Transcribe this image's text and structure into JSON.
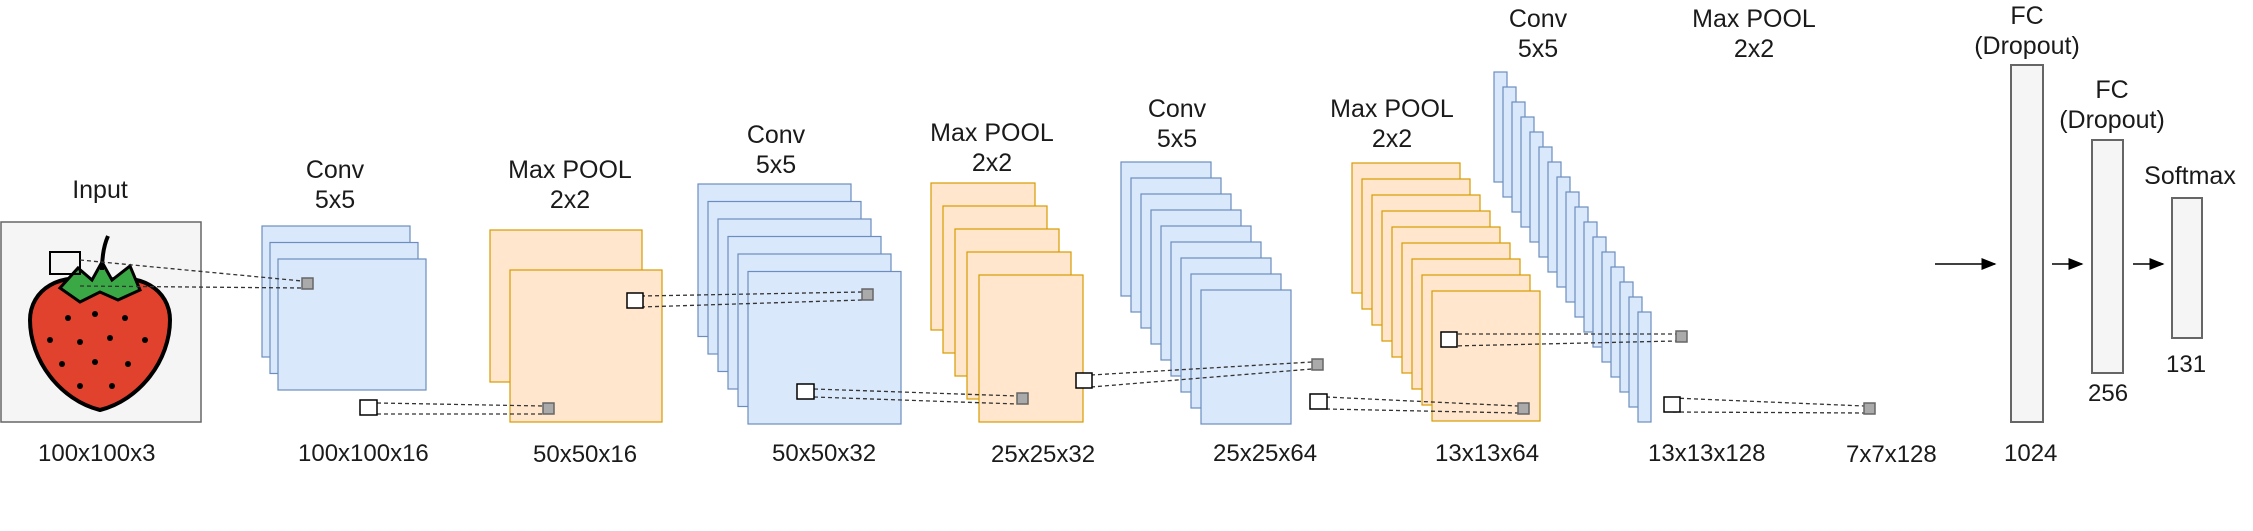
{
  "stages": [
    {
      "id": "input",
      "title": "Input",
      "title2": "",
      "size": "100x100x3"
    },
    {
      "id": "conv1",
      "title": "Conv",
      "title2": "5x5",
      "size": "100x100x16"
    },
    {
      "id": "pool1",
      "title": "Max POOL",
      "title2": "2x2",
      "size": "50x50x16"
    },
    {
      "id": "conv2",
      "title": "Conv",
      "title2": "5x5",
      "size": "50x50x32"
    },
    {
      "id": "pool2",
      "title": "Max POOL",
      "title2": "2x2",
      "size": "25x25x32"
    },
    {
      "id": "conv3",
      "title": "Conv",
      "title2": "5x5",
      "size": "25x25x64"
    },
    {
      "id": "pool3",
      "title": "Max POOL",
      "title2": "2x2",
      "size": "13x13x64"
    },
    {
      "id": "conv4",
      "title": "Conv",
      "title2": "5x5",
      "size": "13x13x128"
    },
    {
      "id": "pool4",
      "title": "Max POOL",
      "title2": "2x2",
      "size": "7x7x128"
    },
    {
      "id": "fc1",
      "title": "FC",
      "title2": "(Dropout)",
      "size": "1024"
    },
    {
      "id": "fc2",
      "title": "FC",
      "title2": "(Dropout)",
      "size": "256"
    },
    {
      "id": "softmax",
      "title": "Softmax",
      "title2": "",
      "size": "131"
    }
  ],
  "colors": {
    "conv_fill": "#dae8fc",
    "conv_stroke": "#6c8ebf",
    "pool_fill": "#ffe6cc",
    "pool_stroke": "#d79b00",
    "fc_fill": "#f5f5f5",
    "fc_stroke": "#666666",
    "strawberry_red": "#e0422e",
    "leaf_green": "#3aa845"
  },
  "icons": {
    "input_image": "strawberry-icon"
  }
}
